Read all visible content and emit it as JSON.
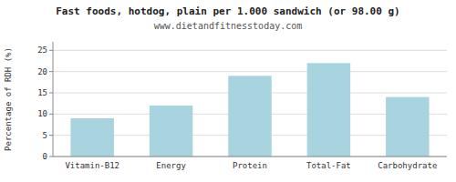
{
  "chart_data": {
    "type": "bar",
    "title": "Fast foods, hotdog, plain per 1.000 sandwich (or 98.00 g)",
    "subtitle": "www.dietandfitnesstoday.com",
    "ylabel": "Percentage of RDH (%)",
    "categories": [
      "Vitamin-B12",
      "Energy",
      "Protein",
      "Total-Fat",
      "Carbohydrate"
    ],
    "values": [
      9.0,
      12.0,
      19.0,
      22.0,
      14.0
    ],
    "color": "#a8d4e0",
    "ylim": [
      0,
      27
    ],
    "yticks": [
      0,
      5,
      10,
      15,
      20,
      25
    ],
    "grid": true
  }
}
